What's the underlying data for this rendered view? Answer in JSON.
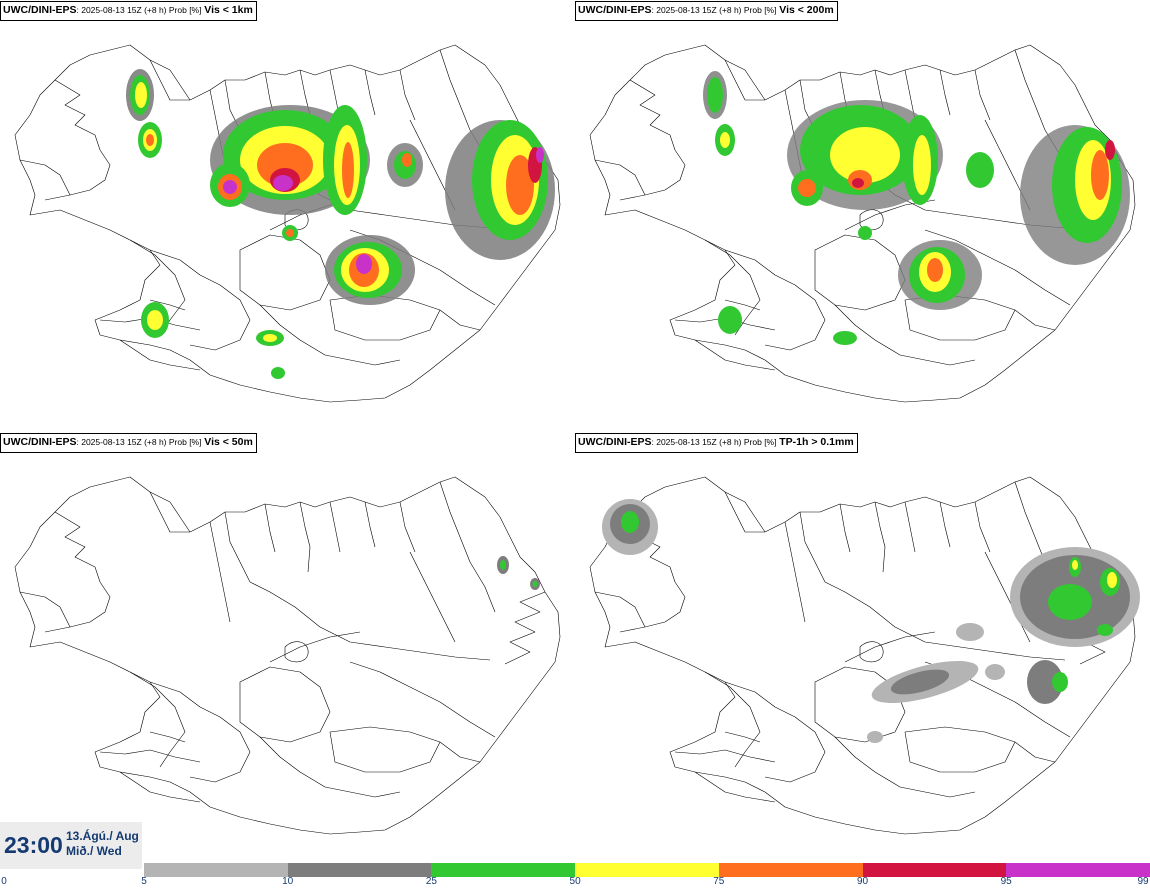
{
  "panels": [
    {
      "model": "UWC/DINI-EPS",
      "run": ": 2025-08-13 15Z (+8 h) Prob [%]",
      "field": "Vis < 1km"
    },
    {
      "model": "UWC/DINI-EPS",
      "run": ": 2025-08-13 15Z (+8 h) Prob [%]",
      "field": "Vis < 200m"
    },
    {
      "model": "UWC/DINI-EPS",
      "run": ": 2025-08-13 15Z (+8 h) Prob [%]",
      "field": "Vis < 50m"
    },
    {
      "model": "UWC/DINI-EPS",
      "run": ": 2025-08-13 15Z (+8 h) Prob [%]",
      "field": "TP-1h > 0.1mm"
    }
  ],
  "valid_time": {
    "time": "23:00",
    "date_line1": "13.Ágú./ Aug",
    "date_line2": "Mið./ Wed"
  },
  "colorbar": {
    "ticks": [
      "0",
      "5",
      "10",
      "25",
      "50",
      "75",
      "90",
      "95",
      "99"
    ],
    "colors": [
      "#b4b4b4",
      "#7d7d7d",
      "#32c832",
      "#ffff32",
      "#ff6e1e",
      "#d21441",
      "#c832c8",
      "#f5aaf0"
    ]
  }
}
